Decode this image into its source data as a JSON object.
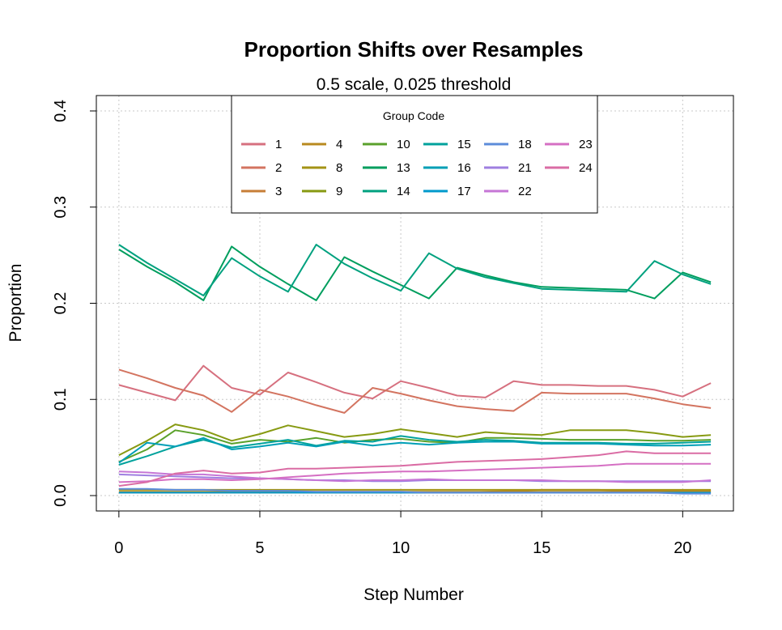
{
  "chart_data": {
    "type": "line",
    "title": "Proportion Shifts over Resamples",
    "subtitle": "0.5 scale, 0.025 threshold",
    "xlabel": "Step Number",
    "ylabel": "Proportion",
    "xlim": [
      -0.8,
      21.8
    ],
    "ylim": [
      -0.016,
      0.416
    ],
    "xticks": [
      0,
      5,
      10,
      15,
      20
    ],
    "yticks": [
      0.0,
      0.1,
      0.2,
      0.3,
      0.4
    ],
    "ytick_labels": [
      "0.0",
      "0.1",
      "0.2",
      "0.3",
      "0.4"
    ],
    "grid": true,
    "legend": {
      "title": "Group Code",
      "placement": "top-center",
      "columns": [
        [
          "1",
          "2",
          "3"
        ],
        [
          "4",
          "8",
          "9"
        ],
        [
          "10",
          "13",
          "14"
        ],
        [
          "15",
          "16",
          "17"
        ],
        [
          "18",
          "21",
          "22"
        ],
        [
          "23",
          "24"
        ]
      ]
    },
    "x": [
      0,
      1,
      2,
      3,
      4,
      5,
      6,
      7,
      8,
      9,
      10,
      11,
      12,
      13,
      14,
      15,
      16,
      17,
      18,
      19,
      20,
      21
    ],
    "series": [
      {
        "name": "1",
        "color": "#D6707F",
        "values": [
          0.115,
          0.107,
          0.099,
          0.135,
          0.112,
          0.105,
          0.128,
          0.118,
          0.107,
          0.101,
          0.119,
          0.112,
          0.104,
          0.102,
          0.119,
          0.115,
          0.115,
          0.114,
          0.114,
          0.11,
          0.103,
          0.117
        ]
      },
      {
        "name": "2",
        "color": "#D37460",
        "values": [
          0.131,
          0.122,
          0.112,
          0.104,
          0.087,
          0.11,
          0.103,
          0.094,
          0.086,
          0.112,
          0.106,
          0.099,
          0.093,
          0.09,
          0.088,
          0.107,
          0.106,
          0.106,
          0.106,
          0.101,
          0.095,
          0.091
        ]
      },
      {
        "name": "3",
        "color": "#C77E37",
        "values": [
          0.003,
          0.003,
          0.003,
          0.003,
          0.003,
          0.003,
          0.003,
          0.003,
          0.003,
          0.003,
          0.003,
          0.003,
          0.003,
          0.004,
          0.005,
          0.006,
          0.006,
          0.006,
          0.005,
          0.005,
          0.005,
          0.005
        ]
      },
      {
        "name": "4",
        "color": "#B88A1F",
        "values": [
          0.004,
          0.004,
          0.004,
          0.004,
          0.004,
          0.004,
          0.004,
          0.004,
          0.004,
          0.004,
          0.004,
          0.004,
          0.004,
          0.004,
          0.004,
          0.004,
          0.004,
          0.004,
          0.004,
          0.004,
          0.004,
          0.004
        ]
      },
      {
        "name": "8",
        "color": "#A39315",
        "values": [
          0.006,
          0.006,
          0.006,
          0.006,
          0.006,
          0.006,
          0.006,
          0.006,
          0.006,
          0.006,
          0.006,
          0.006,
          0.006,
          0.006,
          0.006,
          0.006,
          0.006,
          0.006,
          0.006,
          0.006,
          0.006,
          0.006
        ]
      },
      {
        "name": "9",
        "color": "#879A12",
        "values": [
          0.042,
          0.057,
          0.074,
          0.068,
          0.057,
          0.064,
          0.073,
          0.067,
          0.061,
          0.064,
          0.069,
          0.065,
          0.061,
          0.066,
          0.064,
          0.063,
          0.068,
          0.068,
          0.068,
          0.065,
          0.061,
          0.063
        ]
      },
      {
        "name": "10",
        "color": "#5AA12B",
        "values": [
          0.035,
          0.048,
          0.068,
          0.063,
          0.054,
          0.058,
          0.056,
          0.06,
          0.055,
          0.058,
          0.059,
          0.056,
          0.055,
          0.06,
          0.06,
          0.059,
          0.058,
          0.058,
          0.058,
          0.057,
          0.057,
          0.058
        ]
      },
      {
        "name": "13",
        "color": "#009E5E",
        "values": [
          0.256,
          0.238,
          0.222,
          0.203,
          0.259,
          0.238,
          0.22,
          0.203,
          0.248,
          0.233,
          0.219,
          0.205,
          0.237,
          0.229,
          0.222,
          0.217,
          0.216,
          0.215,
          0.214,
          0.205,
          0.232,
          0.222
        ]
      },
      {
        "name": "14",
        "color": "#00A17F",
        "values": [
          0.261,
          0.242,
          0.225,
          0.208,
          0.247,
          0.228,
          0.212,
          0.261,
          0.241,
          0.226,
          0.213,
          0.252,
          0.236,
          0.227,
          0.221,
          0.215,
          0.214,
          0.213,
          0.212,
          0.244,
          0.23,
          0.22
        ]
      },
      {
        "name": "15",
        "color": "#00A29C",
        "values": [
          0.032,
          0.041,
          0.051,
          0.058,
          0.05,
          0.054,
          0.058,
          0.052,
          0.057,
          0.056,
          0.062,
          0.058,
          0.056,
          0.058,
          0.057,
          0.055,
          0.055,
          0.055,
          0.054,
          0.054,
          0.055,
          0.056
        ]
      },
      {
        "name": "16",
        "color": "#009FB6",
        "values": [
          0.034,
          0.055,
          0.051,
          0.06,
          0.048,
          0.051,
          0.055,
          0.051,
          0.056,
          0.052,
          0.055,
          0.053,
          0.055,
          0.056,
          0.056,
          0.054,
          0.054,
          0.054,
          0.053,
          0.052,
          0.052,
          0.053
        ]
      },
      {
        "name": "17",
        "color": "#0099CC",
        "values": [
          0.003,
          0.003,
          0.003,
          0.003,
          0.003,
          0.003,
          0.003,
          0.003,
          0.003,
          0.003,
          0.003,
          0.003,
          0.003,
          0.003,
          0.003,
          0.003,
          0.003,
          0.003,
          0.003,
          0.003,
          0.003,
          0.003
        ]
      },
      {
        "name": "18",
        "color": "#5C8CDA",
        "values": [
          0.007,
          0.007,
          0.006,
          0.006,
          0.005,
          0.005,
          0.005,
          0.004,
          0.004,
          0.004,
          0.004,
          0.003,
          0.003,
          0.003,
          0.003,
          0.003,
          0.003,
          0.003,
          0.003,
          0.003,
          0.002,
          0.002
        ]
      },
      {
        "name": "21",
        "color": "#9F7FE0",
        "values": [
          0.022,
          0.021,
          0.02,
          0.019,
          0.018,
          0.018,
          0.017,
          0.016,
          0.016,
          0.015,
          0.015,
          0.016,
          0.016,
          0.016,
          0.016,
          0.015,
          0.015,
          0.015,
          0.015,
          0.015,
          0.015,
          0.015
        ]
      },
      {
        "name": "22",
        "color": "#C676D6",
        "values": [
          0.025,
          0.024,
          0.022,
          0.022,
          0.02,
          0.018,
          0.017,
          0.016,
          0.015,
          0.016,
          0.016,
          0.017,
          0.016,
          0.016,
          0.016,
          0.016,
          0.015,
          0.015,
          0.014,
          0.014,
          0.014,
          0.016
        ]
      },
      {
        "name": "23",
        "color": "#D56FC3",
        "values": [
          0.014,
          0.015,
          0.017,
          0.017,
          0.016,
          0.017,
          0.019,
          0.021,
          0.023,
          0.024,
          0.025,
          0.025,
          0.026,
          0.027,
          0.028,
          0.029,
          0.03,
          0.031,
          0.033,
          0.033,
          0.033,
          0.033
        ]
      },
      {
        "name": "24",
        "color": "#DA6CA4",
        "values": [
          0.01,
          0.014,
          0.023,
          0.026,
          0.023,
          0.024,
          0.028,
          0.028,
          0.029,
          0.03,
          0.031,
          0.033,
          0.035,
          0.036,
          0.037,
          0.038,
          0.04,
          0.042,
          0.046,
          0.044,
          0.044,
          0.044
        ]
      }
    ]
  }
}
